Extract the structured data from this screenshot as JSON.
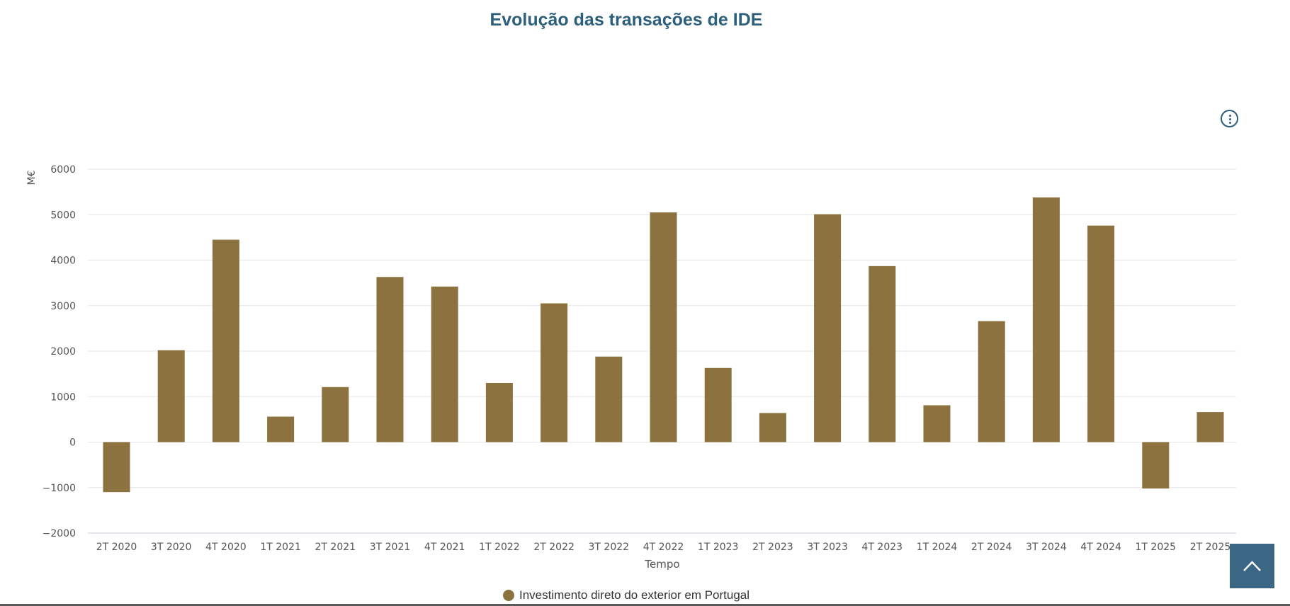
{
  "page": {
    "title": "Evolução das transações de IDE"
  },
  "menu": {
    "icon": "kebab-menu-icon"
  },
  "scroll_top": {
    "icon": "chevron-up-icon"
  },
  "colors": {
    "bar": "#8b723f",
    "title": "#2c5f7c",
    "grid": "#e6e6e6",
    "scroll_button": "#3b6784"
  },
  "chart_data": {
    "type": "bar",
    "title": "Evolução das transações de IDE",
    "xlabel": "Tempo",
    "ylabel": "M€",
    "ylim": [
      -2000,
      6000
    ],
    "yticks": [
      -2000,
      -1000,
      0,
      1000,
      2000,
      3000,
      4000,
      5000,
      6000
    ],
    "ytick_labels": [
      "−2000",
      "−1000",
      "0",
      "1000",
      "2000",
      "3000",
      "4000",
      "5000",
      "6000"
    ],
    "grid": true,
    "legend_position": "bottom-center",
    "categories": [
      "2T 2020",
      "3T 2020",
      "4T 2020",
      "1T 2021",
      "2T 2021",
      "3T 2021",
      "4T 2021",
      "1T 2022",
      "2T 2022",
      "3T 2022",
      "4T 2022",
      "1T 2023",
      "2T 2023",
      "3T 2023",
      "4T 2023",
      "1T 2024",
      "2T 2024",
      "3T 2024",
      "4T 2024",
      "1T 2025",
      "2T 2025"
    ],
    "series": [
      {
        "name": "Investimento direto do exterior em Portugal",
        "color": "#8b723f",
        "values": [
          -1100,
          2020,
          4450,
          560,
          1210,
          3630,
          3420,
          1300,
          3050,
          1880,
          5050,
          1630,
          640,
          5010,
          3870,
          810,
          2660,
          5380,
          4760,
          -1020,
          660
        ]
      }
    ]
  }
}
